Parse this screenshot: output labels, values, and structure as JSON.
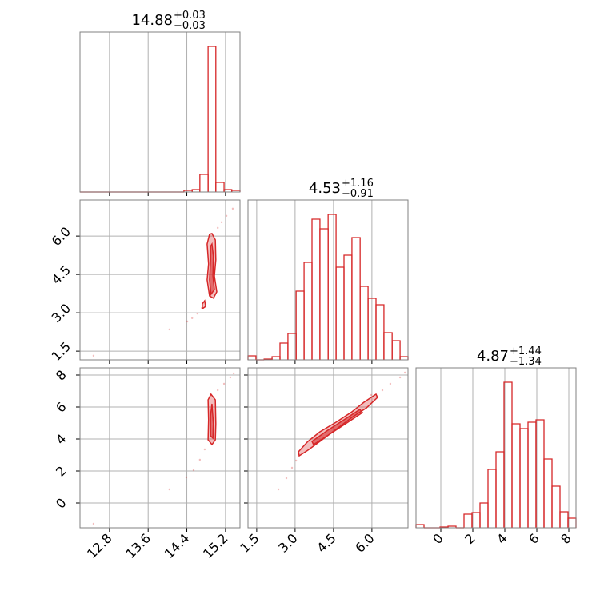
{
  "chart_data": [
    {
      "type": "histogram",
      "color": "#d62728",
      "title": "14.88",
      "title_sup": "+0.03",
      "title_sub": "−0.03",
      "bins": [
        12.19,
        12.36,
        12.52,
        12.69,
        12.85,
        13.02,
        13.18,
        13.35,
        13.51,
        13.68,
        13.85,
        14.01,
        14.18,
        14.34,
        14.51,
        14.67,
        14.84,
        15.0,
        15.17,
        15.33,
        15.5
      ],
      "values": [
        0,
        0,
        0,
        0,
        0,
        0,
        0,
        0,
        0,
        0,
        0,
        0,
        0,
        2,
        3,
        22,
        182,
        12,
        3,
        2
      ],
      "xlim": [
        12.19,
        15.5
      ],
      "ylim": [
        0,
        200
      ],
      "xticks": [
        12.8,
        13.6,
        14.4,
        15.2
      ],
      "xtick_labels": false,
      "grid": true
    },
    {
      "type": "contour",
      "color": "#d62728",
      "xlim": [
        12.19,
        15.5
      ],
      "ylim": [
        1.16,
        7.41
      ],
      "xticks": [
        12.8,
        13.6,
        14.4,
        15.2
      ],
      "yticks": [
        1.5,
        {
          "value": 3,
          "label": "3.0"
        },
        4.5,
        {
          "value": 6,
          "label": "6.0"
        }
      ],
      "xtick_labels": false,
      "ytick_labels": true,
      "grid": true,
      "contours": [
        {
          "x": [
            14.92,
            14.99,
            15.0,
            14.97,
            15.02,
            14.95,
            14.87,
            14.82,
            14.85,
            14.82,
            14.87
          ],
          "y": [
            6.1,
            5.85,
            5.07,
            4.44,
            3.82,
            3.57,
            3.66,
            4.29,
            4.91,
            5.69,
            6.07
          ]
        },
        {
          "x": [
            14.77,
            14.79,
            14.72,
            14.72
          ],
          "y": [
            3.47,
            3.25,
            3.16,
            3.35
          ]
        },
        {
          "x": [
            14.92,
            14.95,
            14.94,
            14.97,
            14.9,
            14.87,
            14.89,
            14.89
          ],
          "y": [
            5.69,
            5.22,
            4.44,
            3.91,
            3.72,
            4.29,
            5.07,
            5.6
          ]
        }
      ],
      "points": {
        "x": [
          12.47,
          14.04,
          14.41,
          14.51,
          14.62,
          14.71,
          15.04,
          15.12,
          15.22,
          15.35
        ],
        "y": [
          1.32,
          2.35,
          2.66,
          2.79,
          2.97,
          3.19,
          6.32,
          6.54,
          6.79,
          7.07
        ]
      }
    },
    {
      "type": "histogram",
      "color": "#d62728",
      "title": "4.53",
      "title_sup": "+1.16",
      "title_sub": "−0.91",
      "bins": [
        1.16,
        1.47,
        1.79,
        2.1,
        2.41,
        2.72,
        3.04,
        3.35,
        3.66,
        3.97,
        4.29,
        4.6,
        4.91,
        5.22,
        5.54,
        5.85,
        6.16,
        6.47,
        6.79,
        7.1,
        7.41
      ],
      "values": [
        5,
        0,
        1,
        4,
        21,
        33,
        86,
        122,
        176,
        164,
        182,
        116,
        131,
        153,
        92,
        77,
        69,
        34,
        24,
        4
      ],
      "xlim": [
        1.16,
        7.41
      ],
      "ylim": [
        0,
        200
      ],
      "xticks": [
        1.5,
        {
          "value": 3,
          "label": "3.0"
        },
        4.5,
        {
          "value": 6,
          "label": "6.0"
        }
      ],
      "xtick_labels": false,
      "grid": true
    },
    {
      "type": "contour",
      "color": "#d62728",
      "xlim": [
        12.19,
        15.5
      ],
      "ylim": [
        -1.55,
        8.45
      ],
      "xticks": [
        12.8,
        13.6,
        14.4,
        15.2
      ],
      "yticks": [
        0,
        2,
        4,
        6,
        8
      ],
      "xtick_labels": true,
      "ytick_labels": true,
      "grid": true,
      "contours": [
        {
          "x": [
            14.9,
            14.99,
            15.0,
            14.99,
            14.92,
            14.84,
            14.85,
            14.84
          ],
          "y": [
            6.8,
            6.45,
            4.95,
            3.95,
            3.65,
            3.95,
            5.2,
            6.45
          ]
        },
        {
          "x": [
            14.92,
            14.95,
            14.94,
            14.89,
            14.89
          ],
          "y": [
            6.2,
            4.95,
            4.05,
            4.2,
            5.45
          ]
        }
      ],
      "points": {
        "x": [
          12.47,
          14.04,
          14.39,
          14.54,
          14.67,
          14.77,
          15.04,
          15.17,
          15.3,
          15.37
        ],
        "y": [
          -1.3,
          0.85,
          1.6,
          2.05,
          2.7,
          3.35,
          7.05,
          7.45,
          7.85,
          8.1
        ]
      }
    },
    {
      "type": "contour",
      "color": "#d62728",
      "xlim": [
        1.16,
        7.41
      ],
      "ylim": [
        -1.55,
        8.45
      ],
      "xticks": [
        1.5,
        {
          "value": 3,
          "label": "3.0"
        },
        4.5,
        {
          "value": 6,
          "label": "6.0"
        }
      ],
      "yticks": [
        0,
        2,
        4,
        6,
        8
      ],
      "xtick_labels": true,
      "ytick_labels": false,
      "grid": true,
      "contours": [
        {
          "x": [
            3.13,
            3.5,
            3.97,
            4.6,
            5.22,
            5.69,
            6.16,
            6.22,
            5.79,
            5.22,
            4.6,
            3.97,
            3.5,
            3.16
          ],
          "y": [
            3.2,
            3.85,
            4.45,
            5.05,
            5.7,
            6.3,
            6.8,
            6.6,
            5.95,
            5.35,
            4.6,
            3.85,
            3.3,
            2.95
          ]
        },
        {
          "x": [
            3.66,
            4.28,
            4.91,
            5.53,
            5.63,
            4.97,
            4.35,
            3.72
          ],
          "y": [
            3.85,
            4.55,
            5.2,
            5.85,
            5.65,
            4.95,
            4.3,
            3.65
          ]
        }
      ],
      "points": {
        "x": [
          2.35,
          2.66,
          2.88,
          3.04,
          5.97,
          6.41,
          6.72,
          7.1,
          7.29
        ],
        "y": [
          0.85,
          1.55,
          2.2,
          2.65,
          6.75,
          7.05,
          7.45,
          7.85,
          8.15
        ]
      }
    },
    {
      "type": "histogram",
      "color": "#d62728",
      "title": "4.87",
      "title_sup": "+1.44",
      "title_sub": "−1.34",
      "bins": [
        -1.55,
        -1.05,
        -0.55,
        -0.05,
        0.45,
        0.95,
        1.45,
        1.95,
        2.45,
        2.95,
        3.45,
        3.95,
        4.45,
        4.95,
        5.45,
        5.95,
        6.45,
        6.95,
        7.45,
        7.95,
        8.45
      ],
      "values": [
        4,
        0,
        0,
        1,
        2,
        0,
        17,
        19,
        31,
        73,
        95,
        182,
        130,
        124,
        132,
        135,
        86,
        52,
        20,
        12
      ],
      "xlim": [
        -1.55,
        8.45
      ],
      "ylim": [
        0,
        200
      ],
      "xticks": [
        0,
        2,
        4,
        6,
        8
      ],
      "xtick_labels": true,
      "grid": true
    }
  ]
}
